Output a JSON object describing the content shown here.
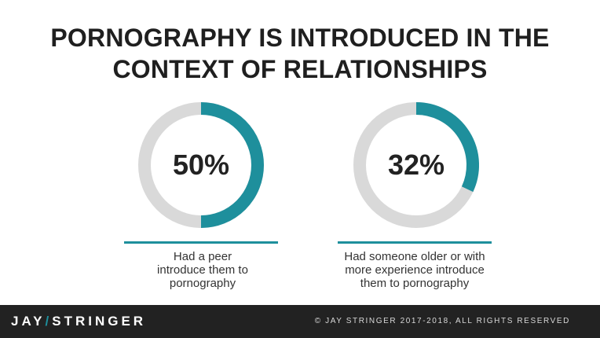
{
  "header": {
    "title_line1": "PORNOGRAPHY IS INTRODUCED IN THE",
    "title_line2": "CONTEXT OF RELATIONSHIPS"
  },
  "colors": {
    "accent": "#1e8f9c",
    "track": "#d9d9d9",
    "footer_bg": "#222222"
  },
  "chart_data": [
    {
      "type": "pie",
      "value": 50,
      "label": "50%",
      "caption_lines": [
        "Had a peer",
        "introduce them to",
        "pornography"
      ]
    },
    {
      "type": "pie",
      "value": 32,
      "label": "32%",
      "caption_lines": [
        "Had someone older or with",
        "more experience introduce",
        "them to pornography"
      ]
    }
  ],
  "footer": {
    "logo_left": "JAY",
    "logo_slash": "/",
    "logo_right": "STRINGER",
    "copyright": "© JAY STRINGER 2017-2018, ALL RIGHTS RESERVED"
  }
}
